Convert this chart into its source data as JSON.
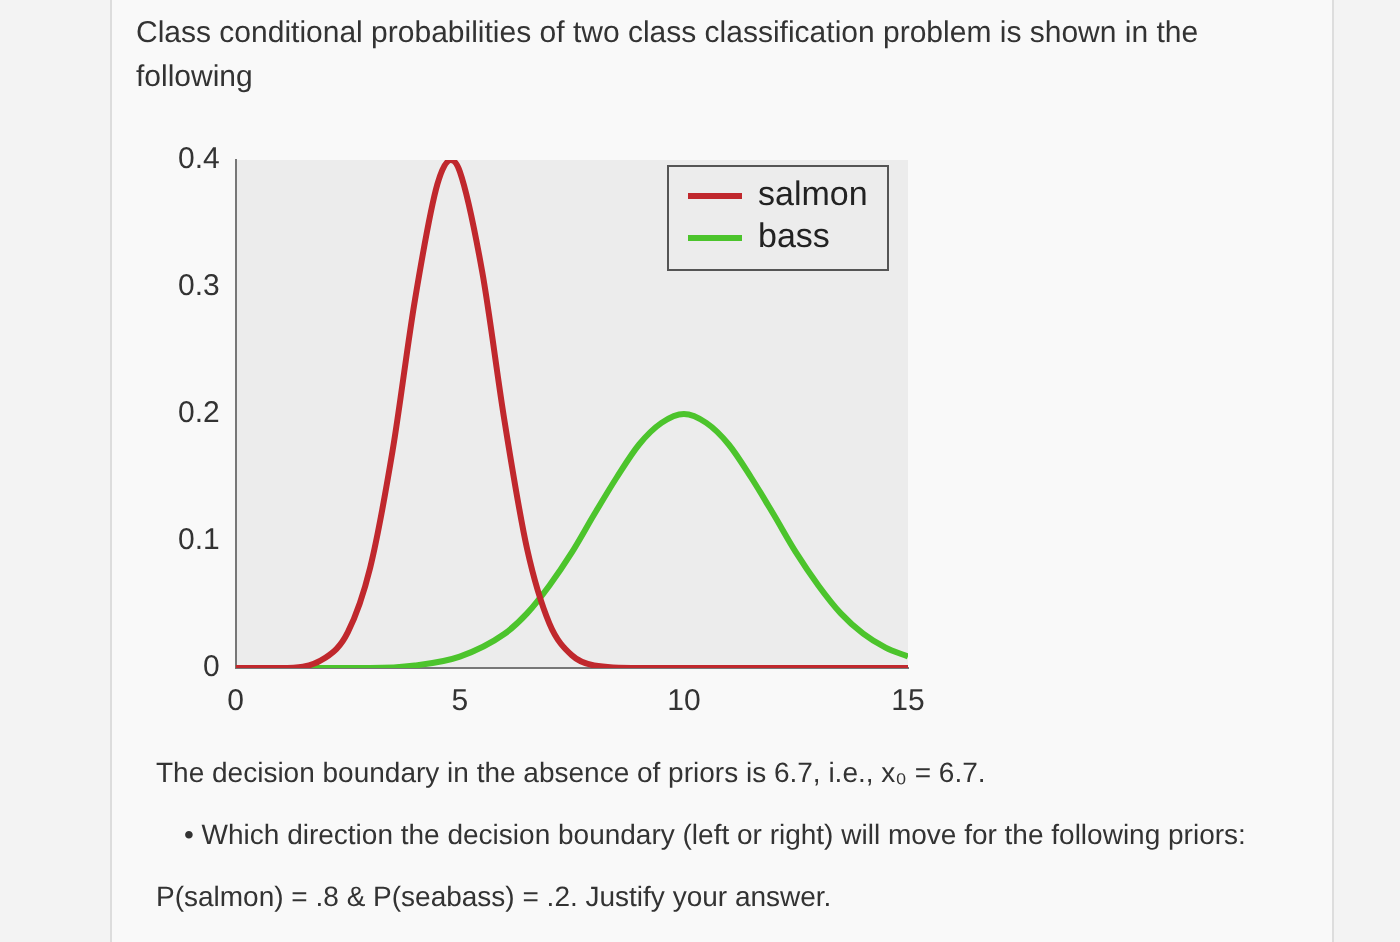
{
  "chart_data": {
    "type": "line",
    "title": "Class conditional probabilities of two class classification problem is shown in the following",
    "xlim": [
      0,
      15
    ],
    "xticks": [
      0,
      5,
      10,
      15
    ],
    "ylim": [
      0,
      0.4
    ],
    "yticks": [
      0,
      0.1,
      0.2,
      0.3,
      0.4
    ],
    "grid": false,
    "legend": "top right",
    "marker": "none",
    "line_style": "solid",
    "series": [
      {
        "name": "salmon",
        "color": "#c0282d",
        "x": [
          0,
          1,
          2,
          2.5,
          3,
          3.5,
          4,
          4.5,
          4.8,
          5,
          5.5,
          6,
          6.5,
          7,
          7.5,
          8,
          9,
          10,
          12,
          15
        ],
        "values": [
          0,
          0,
          0.008,
          0.028,
          0.079,
          0.171,
          0.29,
          0.381,
          0.4,
          0.391,
          0.312,
          0.194,
          0.094,
          0.035,
          0.01,
          0.002,
          0,
          0,
          0,
          0
        ]
      },
      {
        "name": "bass",
        "color": "#4cc42c",
        "x": [
          0,
          2,
          3,
          4,
          5,
          6,
          6.5,
          7,
          7.5,
          8,
          8.5,
          9,
          9.5,
          10,
          10.5,
          11,
          11.5,
          12,
          12.5,
          13,
          13.5,
          14,
          14.5,
          15
        ],
        "values": [
          0,
          0,
          0,
          0.002,
          0.009,
          0.027,
          0.043,
          0.065,
          0.091,
          0.121,
          0.15,
          0.176,
          0.193,
          0.2,
          0.193,
          0.176,
          0.15,
          0.121,
          0.091,
          0.065,
          0.043,
          0.027,
          0.016,
          0.009
        ]
      }
    ],
    "annotations": [
      "The decision boundary in the absence of priors is 6.7, i.e., x₀ = 6.7.",
      "• Which direction the decision boundary (left or right) will move for the following priors:",
      "P(salmon) = .8 & P(seabass) = .2. Justify your answer."
    ]
  }
}
